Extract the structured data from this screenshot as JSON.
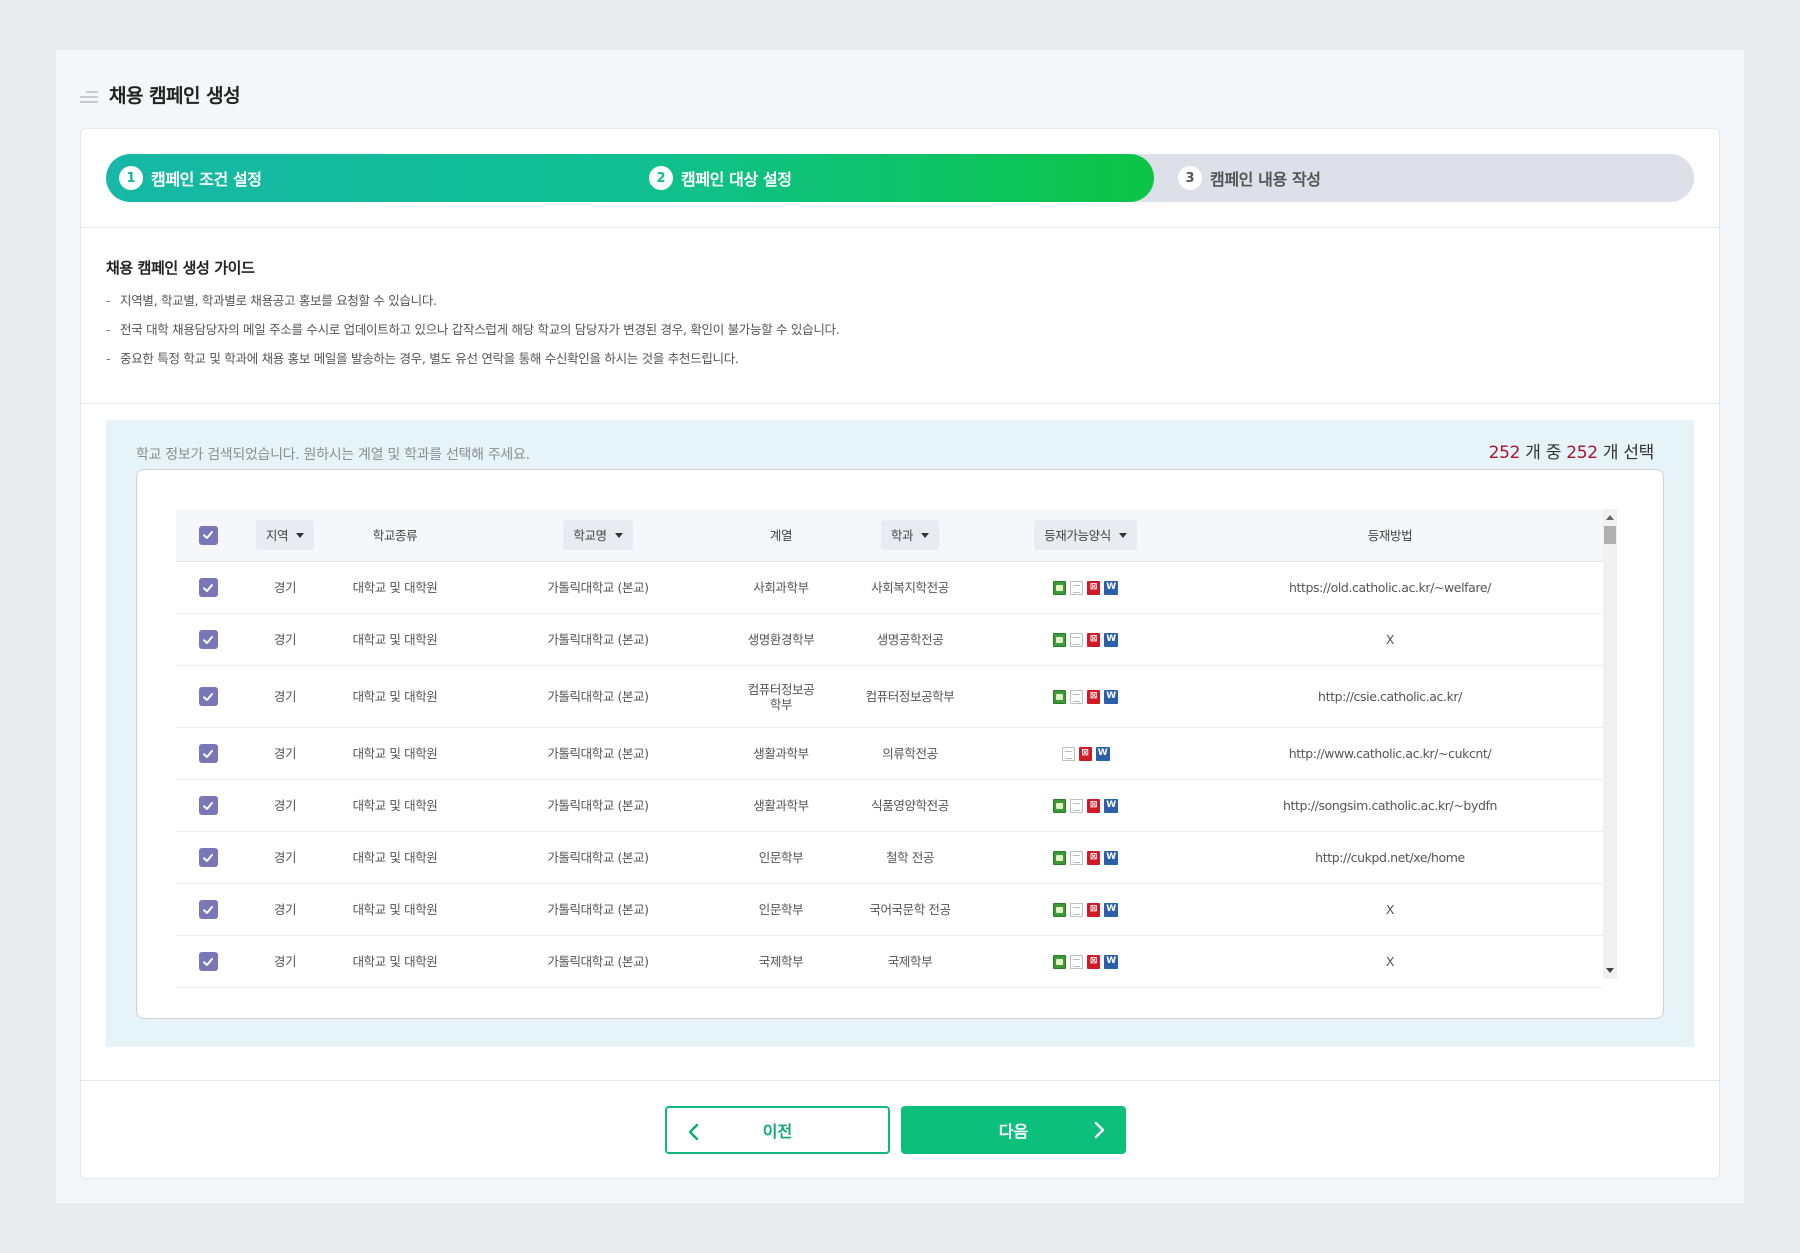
{
  "page": {
    "title": "채용 캠페인 생성"
  },
  "steps": [
    {
      "num": "1",
      "label": "캠페인 조건 설정"
    },
    {
      "num": "2",
      "label": "캠페인 대상 설정"
    },
    {
      "num": "3",
      "label": "캠페인 내용 작성"
    }
  ],
  "guide": {
    "title": "채용 캠페인 생성 가이드",
    "dash": "-",
    "items": [
      "지역별, 학교별, 학과별로 채용공고 홍보를 요청할 수 있습니다.",
      "전국 대학 채용담당자의 메일 주소를 수시로 업데이트하고 있으나 갑작스럽게 해당 학교의 담당자가 변경된 경우, 확인이 불가능할 수 있습니다.",
      "중요한 특정 학교 및 학과에 채용 홍보 메일을 발송하는 경우, 별도 유선 연락을 통해 수신확인을 하시는 것을 추천드립니다."
    ]
  },
  "search": {
    "message": "학교 정보가 검색되었습니다. 원하시는 계열 및 학과를 선택해 주세요.",
    "total": "252",
    "count_mid": " 개 중 ",
    "selected": "252",
    "count_suffix": " 개 선택"
  },
  "table": {
    "headers": {
      "region": "지역",
      "type": "학교종류",
      "school": "학교명",
      "series": "계열",
      "dept": "학과",
      "format": "등재가능양식",
      "method": "등재방법"
    },
    "rows": [
      {
        "region": "경기",
        "type": "대학교 및 대학원",
        "school": "가톨릭대학교 (본교)",
        "series": "사회과학부",
        "dept": "사회복지학전공",
        "formats": [
          "image",
          "text",
          "pdf",
          "word"
        ],
        "method": "https://old.catholic.ac.kr/~welfare/"
      },
      {
        "region": "경기",
        "type": "대학교 및 대학원",
        "school": "가톨릭대학교 (본교)",
        "series": "생명환경학부",
        "dept": "생명공학전공",
        "formats": [
          "image",
          "text",
          "pdf",
          "word"
        ],
        "method": "X"
      },
      {
        "region": "경기",
        "type": "대학교 및 대학원",
        "school": "가톨릭대학교 (본교)",
        "series": "컴퓨터정보공\n학부",
        "dept": "컴퓨터정보공학부",
        "formats": [
          "image",
          "text",
          "pdf",
          "word"
        ],
        "method": "http://csie.catholic.ac.kr/"
      },
      {
        "region": "경기",
        "type": "대학교 및 대학원",
        "school": "가톨릭대학교 (본교)",
        "series": "생활과학부",
        "dept": "의류학전공",
        "formats": [
          "text",
          "pdf",
          "word"
        ],
        "method": "http://www.catholic.ac.kr/~cukcnt/"
      },
      {
        "region": "경기",
        "type": "대학교 및 대학원",
        "school": "가톨릭대학교 (본교)",
        "series": "생활과학부",
        "dept": "식품영양학전공",
        "formats": [
          "image",
          "text",
          "pdf",
          "word"
        ],
        "method": "http://songsim.catholic.ac.kr/~bydfn"
      },
      {
        "region": "경기",
        "type": "대학교 및 대학원",
        "school": "가톨릭대학교 (본교)",
        "series": "인문학부",
        "dept": "철학 전공",
        "formats": [
          "image",
          "text",
          "pdf",
          "word"
        ],
        "method": "http://cukpd.net/xe/home"
      },
      {
        "region": "경기",
        "type": "대학교 및 대학원",
        "school": "가톨릭대학교 (본교)",
        "series": "인문학부",
        "dept": "국어국문학 전공",
        "formats": [
          "image",
          "text",
          "pdf",
          "word"
        ],
        "method": "X"
      },
      {
        "region": "경기",
        "type": "대학교 및 대학원",
        "school": "가톨릭대학교 (본교)",
        "series": "국제학부",
        "dept": "국제학부",
        "formats": [
          "image",
          "text",
          "pdf",
          "word"
        ],
        "method": "X"
      }
    ]
  },
  "buttons": {
    "prev": "이전",
    "next": "다음"
  },
  "colors": {
    "accent": "#0cbf7b",
    "checkbox": "#7a76b8",
    "count_highlight": "#a8112f"
  }
}
